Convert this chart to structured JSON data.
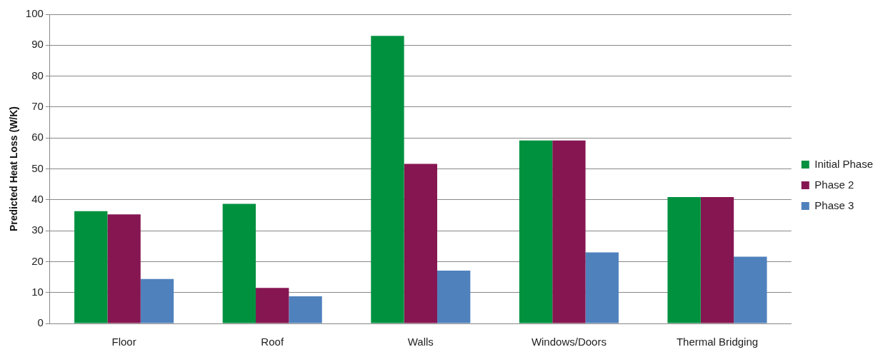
{
  "chart_data": {
    "type": "bar",
    "ylabel": "Predicted Heat Loss (W/K)",
    "categories": [
      "Floor",
      "Roof",
      "Walls",
      "Windows/Doors",
      "Thermal Bridging"
    ],
    "series": [
      {
        "name": "Initial Phase",
        "color": "#00913f",
        "values": [
          36.3,
          38.7,
          93,
          59.2,
          40.9
        ]
      },
      {
        "name": "Phase 2",
        "color": "#861652",
        "values": [
          35.3,
          11.5,
          51.6,
          59.2,
          40.9
        ]
      },
      {
        "name": "Phase 3",
        "color": "#4f81bd",
        "values": [
          14.4,
          8.8,
          17.1,
          23,
          21.6
        ]
      }
    ],
    "ylim": [
      0,
      100
    ],
    "yticks": [
      0,
      10,
      20,
      30,
      40,
      50,
      60,
      70,
      80,
      90,
      100
    ],
    "grid": "y",
    "legend": "right"
  }
}
